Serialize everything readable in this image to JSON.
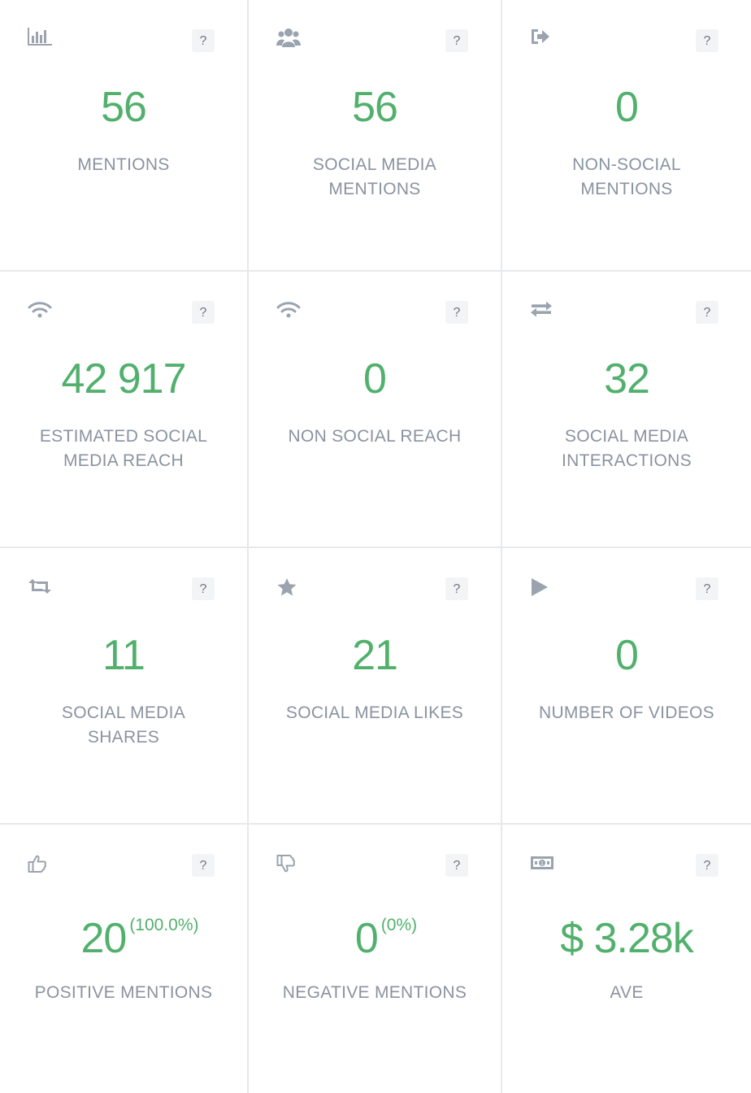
{
  "cards": [
    {
      "icon": "bar-chart-icon",
      "value": "56",
      "label": "MENTIONS",
      "help": "?"
    },
    {
      "icon": "users-icon",
      "value": "56",
      "label": "SOCIAL MEDIA MENTIONS",
      "help": "?"
    },
    {
      "icon": "sign-out-icon",
      "value": "0",
      "label": "NON-SOCIAL MENTIONS",
      "help": "?"
    },
    {
      "icon": "wifi-icon",
      "value": "42 917",
      "label": "ESTIMATED SOCIAL MEDIA REACH",
      "help": "?"
    },
    {
      "icon": "wifi-icon",
      "value": "0",
      "label": "NON SOCIAL REACH",
      "help": "?"
    },
    {
      "icon": "exchange-icon",
      "value": "32",
      "label": "SOCIAL MEDIA INTERACTIONS",
      "help": "?"
    },
    {
      "icon": "retweet-icon",
      "value": "11",
      "label": "SOCIAL MEDIA SHARES",
      "help": "?"
    },
    {
      "icon": "star-icon",
      "value": "21",
      "label": "SOCIAL MEDIA LIKES",
      "help": "?"
    },
    {
      "icon": "play-icon",
      "value": "0",
      "label": "NUMBER OF VIDEOS",
      "help": "?"
    },
    {
      "icon": "thumbs-up-icon",
      "value": "20",
      "pct": "(100.0%)",
      "label": "POSITIVE MENTIONS",
      "help": "?"
    },
    {
      "icon": "thumbs-down-icon",
      "value": "0",
      "pct": "(0%)",
      "label": "NEGATIVE MENTIONS",
      "help": "?"
    },
    {
      "icon": "money-icon",
      "value": "$ 3.28k",
      "label": "AVE",
      "help": "?"
    }
  ],
  "colors": {
    "value": "#52b06d",
    "label": "#8a93a0",
    "icon": "#9aa3ae",
    "border": "#e6e8eb"
  }
}
